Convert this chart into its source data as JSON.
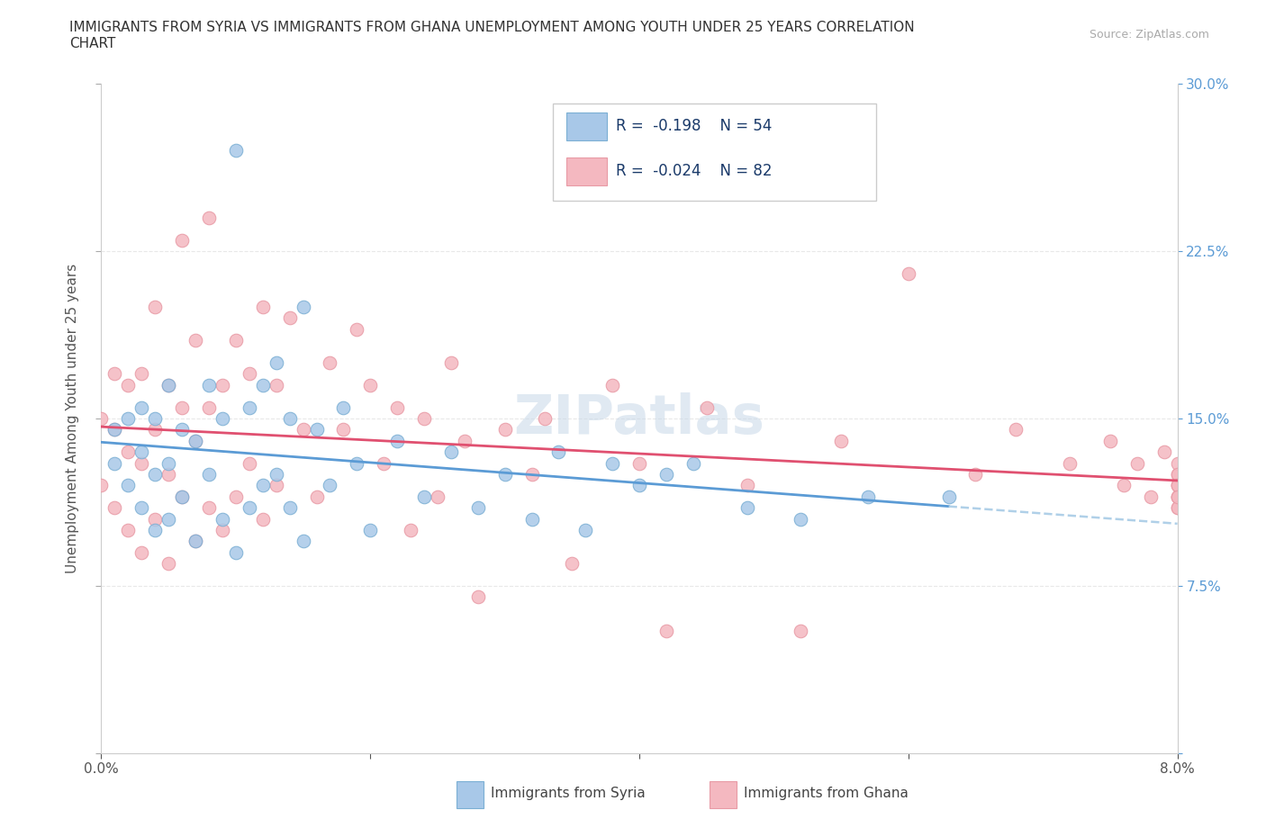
{
  "title_line1": "IMMIGRANTS FROM SYRIA VS IMMIGRANTS FROM GHANA UNEMPLOYMENT AMONG YOUTH UNDER 25 YEARS CORRELATION",
  "title_line2": "CHART",
  "source": "Source: ZipAtlas.com",
  "ylabel": "Unemployment Among Youth under 25 years",
  "xlim": [
    0.0,
    0.08
  ],
  "ylim": [
    0.0,
    0.3
  ],
  "syria_color": "#a8c8e8",
  "syria_edge": "#7bafd4",
  "ghana_color": "#f4b8c0",
  "ghana_edge": "#e89aa5",
  "syria_line_color": "#5b9bd5",
  "ghana_line_color": "#e05070",
  "syria_dash_color": "#b0d0e8",
  "tick_color": "#5b9bd5",
  "label_color": "#555555",
  "grid_color": "#e8e8e8",
  "watermark": "ZIPatlas",
  "legend_R_color": "#1a3a6a",
  "syria_R": -0.198,
  "syria_N": 54,
  "ghana_R": -0.024,
  "ghana_N": 82,
  "syria_x": [
    0.001,
    0.001,
    0.002,
    0.002,
    0.003,
    0.003,
    0.003,
    0.004,
    0.004,
    0.004,
    0.005,
    0.005,
    0.005,
    0.006,
    0.006,
    0.007,
    0.007,
    0.008,
    0.008,
    0.009,
    0.009,
    0.01,
    0.01,
    0.011,
    0.011,
    0.012,
    0.012,
    0.013,
    0.013,
    0.014,
    0.014,
    0.015,
    0.015,
    0.016,
    0.017,
    0.018,
    0.019,
    0.02,
    0.022,
    0.024,
    0.026,
    0.028,
    0.03,
    0.032,
    0.034,
    0.036,
    0.038,
    0.04,
    0.042,
    0.044,
    0.048,
    0.052,
    0.057,
    0.063
  ],
  "syria_y": [
    0.13,
    0.145,
    0.12,
    0.15,
    0.11,
    0.135,
    0.155,
    0.1,
    0.125,
    0.15,
    0.105,
    0.13,
    0.165,
    0.115,
    0.145,
    0.095,
    0.14,
    0.125,
    0.165,
    0.105,
    0.15,
    0.09,
    0.27,
    0.11,
    0.155,
    0.12,
    0.165,
    0.125,
    0.175,
    0.11,
    0.15,
    0.095,
    0.2,
    0.145,
    0.12,
    0.155,
    0.13,
    0.1,
    0.14,
    0.115,
    0.135,
    0.11,
    0.125,
    0.105,
    0.135,
    0.1,
    0.13,
    0.12,
    0.125,
    0.13,
    0.11,
    0.105,
    0.115,
    0.115
  ],
  "ghana_x": [
    0.0,
    0.0,
    0.001,
    0.001,
    0.001,
    0.002,
    0.002,
    0.002,
    0.003,
    0.003,
    0.003,
    0.004,
    0.004,
    0.004,
    0.005,
    0.005,
    0.005,
    0.006,
    0.006,
    0.006,
    0.007,
    0.007,
    0.007,
    0.008,
    0.008,
    0.008,
    0.009,
    0.009,
    0.01,
    0.01,
    0.011,
    0.011,
    0.012,
    0.012,
    0.013,
    0.013,
    0.014,
    0.015,
    0.016,
    0.017,
    0.018,
    0.019,
    0.02,
    0.021,
    0.022,
    0.023,
    0.024,
    0.025,
    0.026,
    0.027,
    0.028,
    0.03,
    0.032,
    0.033,
    0.035,
    0.038,
    0.04,
    0.042,
    0.045,
    0.048,
    0.052,
    0.055,
    0.06,
    0.065,
    0.068,
    0.072,
    0.075,
    0.076,
    0.077,
    0.078,
    0.079,
    0.08,
    0.08,
    0.08,
    0.08,
    0.08,
    0.08,
    0.08,
    0.08,
    0.08,
    0.08,
    0.08
  ],
  "ghana_y": [
    0.12,
    0.15,
    0.11,
    0.145,
    0.17,
    0.1,
    0.135,
    0.165,
    0.09,
    0.13,
    0.17,
    0.105,
    0.145,
    0.2,
    0.085,
    0.125,
    0.165,
    0.115,
    0.155,
    0.23,
    0.095,
    0.14,
    0.185,
    0.11,
    0.155,
    0.24,
    0.1,
    0.165,
    0.115,
    0.185,
    0.13,
    0.17,
    0.105,
    0.2,
    0.12,
    0.165,
    0.195,
    0.145,
    0.115,
    0.175,
    0.145,
    0.19,
    0.165,
    0.13,
    0.155,
    0.1,
    0.15,
    0.115,
    0.175,
    0.14,
    0.07,
    0.145,
    0.125,
    0.15,
    0.085,
    0.165,
    0.13,
    0.055,
    0.155,
    0.12,
    0.055,
    0.14,
    0.215,
    0.125,
    0.145,
    0.13,
    0.14,
    0.12,
    0.13,
    0.115,
    0.135,
    0.12,
    0.115,
    0.125,
    0.11,
    0.13,
    0.12,
    0.115,
    0.125,
    0.11,
    0.12,
    0.115
  ]
}
